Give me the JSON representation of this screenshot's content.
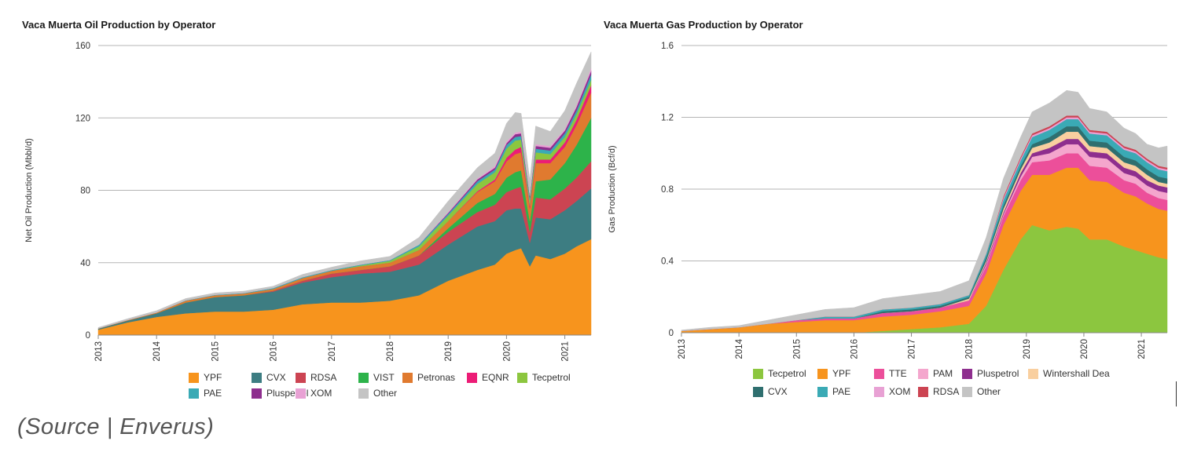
{
  "source_caption": "(Source | Enverus)",
  "chart_data": [
    {
      "type": "area",
      "stacked": true,
      "title": "Vaca Muerta Oil Production by Operator",
      "xlabel": "",
      "ylabel": "Net Oil Production (Mbbl/d)",
      "ylim": [
        0,
        160
      ],
      "yticks": [
        0,
        40,
        80,
        120,
        160
      ],
      "xlim": [
        2013.0,
        2021.45
      ],
      "xticks": [
        "2013",
        "2014",
        "2015",
        "2016",
        "2017",
        "2018",
        "2019",
        "2020",
        "2021"
      ],
      "grid": true,
      "legend_position": "bottom",
      "x": [
        2013.0,
        2013.5,
        2014.0,
        2014.5,
        2015.0,
        2015.5,
        2016.0,
        2016.5,
        2017.0,
        2017.5,
        2018.0,
        2018.5,
        2019.0,
        2019.5,
        2019.8,
        2020.0,
        2020.15,
        2020.25,
        2020.4,
        2020.5,
        2020.75,
        2021.0,
        2021.2,
        2021.45
      ],
      "series": [
        {
          "name": "YPF",
          "color": "#f7941d",
          "values": [
            3,
            7,
            10,
            12,
            13,
            13,
            14,
            17,
            18,
            18,
            19,
            22,
            30,
            36,
            39,
            45,
            47,
            48,
            38,
            44,
            42,
            45,
            49,
            53
          ]
        },
        {
          "name": "CVX",
          "color": "#3d7d82",
          "values": [
            0.5,
            1,
            2,
            6,
            8,
            9,
            10,
            12,
            14,
            16,
            16,
            17,
            20,
            24,
            24,
            24,
            23,
            22,
            13,
            21,
            22,
            24,
            25,
            28
          ]
        },
        {
          "name": "RDSA",
          "color": "#cc4452",
          "values": [
            0,
            0,
            0,
            0,
            0,
            0,
            0.5,
            1,
            2,
            2,
            3,
            5,
            7,
            8,
            9,
            10,
            11,
            12,
            6,
            11,
            11,
            12,
            13,
            15
          ]
        },
        {
          "name": "VIST",
          "color": "#2db34a",
          "values": [
            0,
            0,
            0,
            0,
            0,
            0,
            0,
            0,
            0,
            0,
            0,
            0,
            2,
            5,
            6,
            8,
            9,
            9,
            6,
            9,
            11,
            14,
            18,
            24
          ]
        },
        {
          "name": "Petronas",
          "color": "#e07a2f",
          "values": [
            0.2,
            0.3,
            0.5,
            1,
            1,
            1,
            1,
            1.5,
            1.5,
            2,
            2,
            3,
            4,
            6,
            7,
            9,
            10,
            10,
            7,
            10,
            9,
            9,
            11,
            14
          ]
        },
        {
          "name": "EQNR",
          "color": "#ec1c76",
          "values": [
            0,
            0,
            0,
            0,
            0,
            0,
            0,
            0,
            0,
            0,
            0,
            0,
            0,
            0.5,
            1,
            2,
            2.5,
            3,
            1.5,
            2,
            2,
            2.5,
            3,
            4
          ]
        },
        {
          "name": "Tecpetrol",
          "color": "#8cc63f",
          "values": [
            0,
            0,
            0,
            0,
            0,
            0,
            0,
            0,
            0,
            0.5,
            1,
            2,
            3,
            4,
            4,
            5,
            5,
            4,
            3,
            4,
            3,
            3,
            3,
            3
          ]
        },
        {
          "name": "PAE",
          "color": "#3aaab5",
          "values": [
            0,
            0,
            0,
            0.2,
            0.3,
            0.3,
            0.5,
            0.5,
            0.5,
            0.5,
            0.5,
            1,
            1,
            1.5,
            1.5,
            2,
            2,
            2,
            1.5,
            2,
            2,
            2,
            2,
            3
          ]
        },
        {
          "name": "Pluspetrol",
          "color": "#8e2e8e",
          "values": [
            0,
            0,
            0,
            0,
            0,
            0,
            0,
            0,
            0,
            0,
            0,
            0,
            0.5,
            1,
            1,
            1,
            1.5,
            1.5,
            1,
            1.5,
            1.5,
            1.5,
            2,
            2
          ]
        },
        {
          "name": "XOM",
          "color": "#e8a1d4",
          "values": [
            0,
            0,
            0,
            0,
            0,
            0,
            0,
            0,
            0,
            0,
            0,
            0,
            0.5,
            0.5,
            1,
            1,
            1,
            1,
            0.5,
            1,
            1,
            1,
            1,
            1.5
          ]
        },
        {
          "name": "Other",
          "color": "#c4c4c4",
          "values": [
            0.5,
            0.7,
            1,
            1,
            1,
            1,
            1,
            1.5,
            1.5,
            2,
            2,
            4,
            6,
            6,
            7,
            10,
            11,
            10,
            8,
            10,
            8,
            10,
            12,
            9
          ]
        }
      ]
    },
    {
      "type": "area",
      "stacked": true,
      "title": "Vaca Muerta Gas Production by Operator",
      "xlabel": "",
      "ylabel": "Gas Production (Bcf/d)",
      "ylim": [
        0,
        1.6
      ],
      "yticks": [
        0,
        0.4,
        0.8,
        1.2,
        1.6
      ],
      "xlim": [
        2013.0,
        2021.45
      ],
      "xticks": [
        "2013",
        "2014",
        "2015",
        "2016",
        "2017",
        "2018",
        "2019",
        "2020",
        "2021"
      ],
      "grid": true,
      "legend_position": "bottom",
      "x": [
        2013.0,
        2013.5,
        2014.0,
        2014.5,
        2015.0,
        2015.5,
        2016.0,
        2016.5,
        2017.0,
        2017.5,
        2018.0,
        2018.3,
        2018.6,
        2018.9,
        2019.1,
        2019.4,
        2019.7,
        2019.9,
        2020.1,
        2020.4,
        2020.7,
        2020.9,
        2021.1,
        2021.3,
        2021.45
      ],
      "series": [
        {
          "name": "Tecpetrol",
          "color": "#8cc63f",
          "values": [
            0,
            0,
            0,
            0,
            0,
            0,
            0,
            0.01,
            0.02,
            0.03,
            0.05,
            0.15,
            0.35,
            0.52,
            0.6,
            0.57,
            0.59,
            0.58,
            0.52,
            0.52,
            0.48,
            0.46,
            0.44,
            0.42,
            0.41
          ]
        },
        {
          "name": "YPF",
          "color": "#f7941d",
          "values": [
            0.01,
            0.02,
            0.03,
            0.05,
            0.06,
            0.07,
            0.07,
            0.08,
            0.08,
            0.09,
            0.1,
            0.18,
            0.25,
            0.27,
            0.28,
            0.31,
            0.33,
            0.34,
            0.33,
            0.32,
            0.3,
            0.3,
            0.28,
            0.27,
            0.27
          ]
        },
        {
          "name": "TTE",
          "color": "#ec4f9a",
          "values": [
            0,
            0,
            0,
            0,
            0.01,
            0.01,
            0.01,
            0.02,
            0.02,
            0.02,
            0.03,
            0.04,
            0.05,
            0.06,
            0.07,
            0.08,
            0.08,
            0.08,
            0.08,
            0.08,
            0.07,
            0.07,
            0.06,
            0.06,
            0.06
          ]
        },
        {
          "name": "PAM",
          "color": "#f4a6cd",
          "values": [
            0,
            0,
            0,
            0,
            0,
            0,
            0,
            0,
            0,
            0,
            0,
            0.01,
            0.01,
            0.02,
            0.03,
            0.04,
            0.05,
            0.05,
            0.05,
            0.05,
            0.04,
            0.04,
            0.04,
            0.04,
            0.04
          ]
        },
        {
          "name": "Pluspetrol",
          "color": "#8e2e8e",
          "values": [
            0,
            0,
            0,
            0,
            0,
            0,
            0,
            0,
            0,
            0,
            0,
            0.01,
            0.01,
            0.02,
            0.02,
            0.03,
            0.03,
            0.03,
            0.03,
            0.03,
            0.03,
            0.03,
            0.03,
            0.03,
            0.03
          ]
        },
        {
          "name": "Wintershall Dea",
          "color": "#f9cf9f",
          "values": [
            0,
            0,
            0,
            0,
            0,
            0,
            0,
            0,
            0,
            0,
            0.01,
            0.01,
            0.02,
            0.02,
            0.03,
            0.03,
            0.04,
            0.04,
            0.03,
            0.03,
            0.03,
            0.03,
            0.03,
            0.02,
            0.02
          ]
        },
        {
          "name": "CVX",
          "color": "#2f6f6f",
          "values": [
            0,
            0,
            0,
            0,
            0,
            0,
            0,
            0.01,
            0.01,
            0.01,
            0.01,
            0.02,
            0.02,
            0.02,
            0.02,
            0.03,
            0.03,
            0.03,
            0.03,
            0.03,
            0.03,
            0.03,
            0.03,
            0.03,
            0.03
          ]
        },
        {
          "name": "PAE",
          "color": "#3aaab5",
          "values": [
            0,
            0,
            0,
            0,
            0,
            0.01,
            0.01,
            0.01,
            0.01,
            0.01,
            0.01,
            0.02,
            0.03,
            0.03,
            0.04,
            0.04,
            0.04,
            0.04,
            0.04,
            0.04,
            0.04,
            0.04,
            0.04,
            0.04,
            0.04
          ]
        },
        {
          "name": "XOM",
          "color": "#e8a1d4",
          "values": [
            0,
            0,
            0,
            0,
            0,
            0,
            0,
            0,
            0,
            0,
            0,
            0,
            0.01,
            0.01,
            0.01,
            0.01,
            0.01,
            0.01,
            0.01,
            0.01,
            0.01,
            0.01,
            0.01,
            0.01,
            0.01
          ]
        },
        {
          "name": "RDSA",
          "color": "#cc4452",
          "values": [
            0,
            0,
            0,
            0,
            0,
            0,
            0,
            0,
            0,
            0,
            0,
            0,
            0.01,
            0.01,
            0.01,
            0.01,
            0.01,
            0.01,
            0.01,
            0.01,
            0.01,
            0.01,
            0.01,
            0.01,
            0.01
          ]
        },
        {
          "name": "Other",
          "color": "#c4c4c4",
          "values": [
            0.005,
            0.01,
            0.01,
            0.02,
            0.03,
            0.04,
            0.05,
            0.06,
            0.07,
            0.07,
            0.08,
            0.09,
            0.1,
            0.11,
            0.12,
            0.13,
            0.14,
            0.13,
            0.12,
            0.11,
            0.1,
            0.09,
            0.08,
            0.1,
            0.12
          ]
        }
      ]
    }
  ]
}
